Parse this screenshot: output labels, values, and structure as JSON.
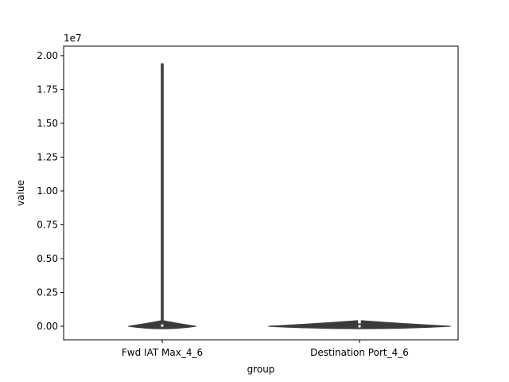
{
  "chart_data": {
    "type": "violin",
    "xlabel": "group",
    "ylabel": "value",
    "y_offset_label": "1e7",
    "ylim": [
      -1000000,
      20700000
    ],
    "yticks": [
      0,
      2500000,
      5000000,
      7500000,
      10000000,
      12500000,
      15000000,
      17500000,
      20000000
    ],
    "ytick_labels": [
      "0.00",
      "0.25",
      "0.50",
      "0.75",
      "1.00",
      "1.25",
      "1.50",
      "1.75",
      "2.00"
    ],
    "categories": [
      "Fwd IAT Max_4_6",
      "Destination Port_4_6"
    ],
    "groups": [
      {
        "category": "Fwd IAT Max_4_6",
        "min": 0,
        "max": 19400000,
        "q1": 0,
        "median": 50000,
        "q3": 200000,
        "width_rel": 0.34
      },
      {
        "category": "Destination Port_4_6",
        "min": 0,
        "max": 65000,
        "q1": 0,
        "median": 443,
        "q3": 8000,
        "width_rel": 0.92
      }
    ],
    "colors": {
      "violin_fill": "#3a3a3a",
      "violin_edge": "#3f3f3f",
      "box": "#3f3f3f",
      "median": "#ffffff"
    },
    "grid": false,
    "legend": "none"
  }
}
